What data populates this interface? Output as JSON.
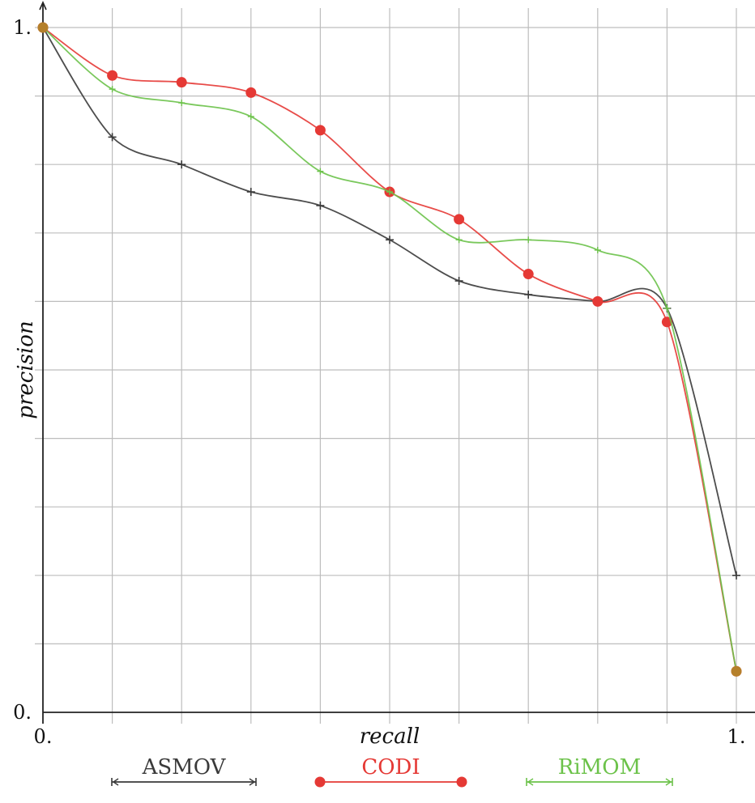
{
  "chart_data": {
    "type": "line",
    "title": "",
    "xlabel": "recall",
    "ylabel": "precision",
    "xlim": [
      0,
      1
    ],
    "ylim": [
      0,
      1
    ],
    "x_tick_labels": [
      "0.",
      "1."
    ],
    "y_tick_labels": [
      "0.",
      "1."
    ],
    "grid": true,
    "legend_position": "bottom",
    "x": [
      0,
      0.1,
      0.2,
      0.3,
      0.4,
      0.5,
      0.6,
      0.7,
      0.8,
      0.9,
      1.0
    ],
    "series": [
      {
        "name": "ASMOV",
        "color": "#3a3a3a",
        "marker": "plus",
        "values": [
          1.0,
          0.84,
          0.8,
          0.76,
          0.74,
          0.69,
          0.63,
          0.61,
          0.6,
          0.59,
          0.2
        ]
      },
      {
        "name": "CODI",
        "color": "#e53935",
        "marker": "circle",
        "values": [
          1.0,
          0.93,
          0.92,
          0.905,
          0.85,
          0.76,
          0.72,
          0.64,
          0.6,
          0.57,
          0.06
        ]
      },
      {
        "name": "RiMOM",
        "color": "#6cc24a",
        "marker": "tick",
        "values": [
          1.0,
          0.91,
          0.89,
          0.87,
          0.79,
          0.76,
          0.69,
          0.69,
          0.675,
          0.59,
          0.06
        ]
      }
    ]
  }
}
